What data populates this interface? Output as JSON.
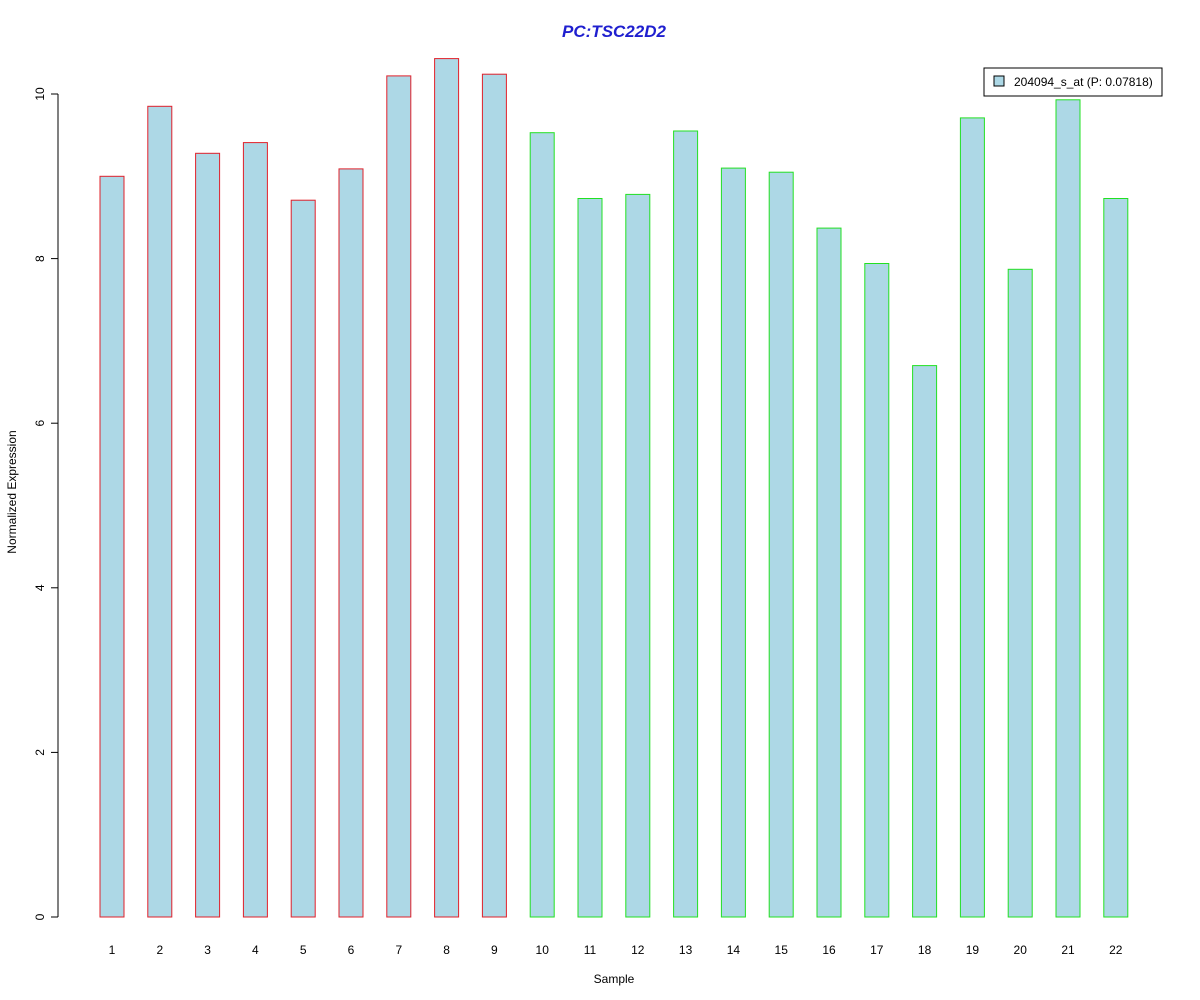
{
  "chart_data": {
    "type": "bar",
    "title": "PC:TSC22D2",
    "xlabel": "Sample",
    "ylabel": "Normalized Expression",
    "categories": [
      "1",
      "2",
      "3",
      "4",
      "5",
      "6",
      "7",
      "8",
      "9",
      "10",
      "11",
      "12",
      "13",
      "14",
      "15",
      "16",
      "17",
      "18",
      "19",
      "20",
      "21",
      "22"
    ],
    "values": [
      9.0,
      9.85,
      9.28,
      9.41,
      8.71,
      9.09,
      10.22,
      10.43,
      10.24,
      9.53,
      8.73,
      8.78,
      9.55,
      9.1,
      9.05,
      8.37,
      7.94,
      6.7,
      9.71,
      7.87,
      9.93,
      8.73
    ],
    "group_outline_colors": [
      "#e0202a",
      "#e0202a",
      "#e0202a",
      "#e0202a",
      "#e0202a",
      "#e0202a",
      "#e0202a",
      "#e0202a",
      "#e0202a",
      "#22e022",
      "#22e022",
      "#22e022",
      "#22e022",
      "#22e022",
      "#22e022",
      "#22e022",
      "#22e022",
      "#22e022",
      "#22e022",
      "#22e022",
      "#22e022",
      "#22e022"
    ],
    "bar_fill": "#add8e6",
    "title_color": "#1f1fcf",
    "ylim": [
      0,
      10.45
    ],
    "yticks": [
      0,
      2,
      4,
      6,
      8,
      10
    ],
    "grid": false,
    "legend": {
      "placement": "top-right",
      "entries": [
        {
          "label": "204094_s_at (P: 0.07818)",
          "color": "#add8e6"
        }
      ]
    }
  }
}
